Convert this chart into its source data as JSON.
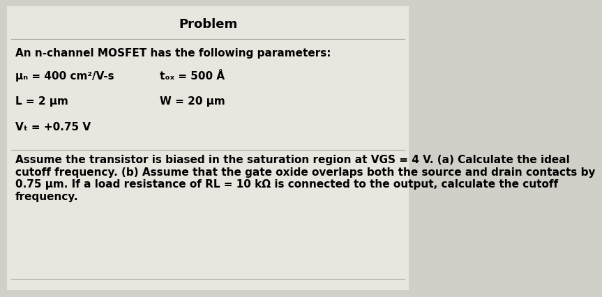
{
  "title": "Problem",
  "bg_color": "#d0cfc8",
  "box_color": "#e8e6df",
  "title_fontsize": 13,
  "body_fontsize": 11,
  "intro_text": "An n-channel MOSFET has the following parameters:",
  "param_col1": [
    "μₙ = 400 cm²/V-s",
    "L = 2 μm",
    "Vₜ = +0.75 V"
  ],
  "param_col2": [
    "tₒₓ = 500 Å",
    "W = 20 μm"
  ],
  "body_text": "Assume the transistor is biased in the saturation region at VGS = 4 V. (a) Calculate the ideal\ncutoff frequency. (b) Assume that the gate oxide overlaps both the source and drain contacts by\n0.75 μm. If a load resistance of RL = 10 kΩ is connected to the output, calculate the cutoff\nfrequency."
}
